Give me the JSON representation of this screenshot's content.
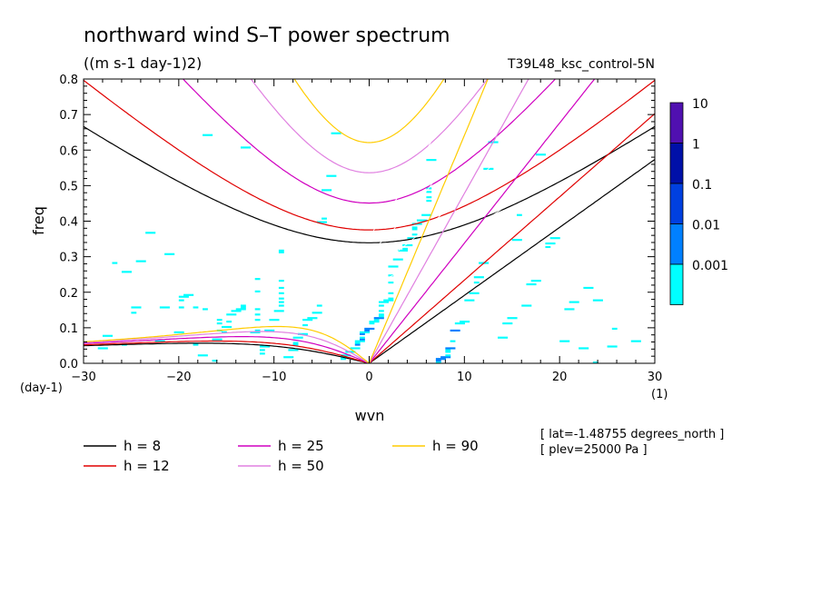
{
  "chart_data": {
    "type": "heatmap",
    "title": "northward wind S–T power spectrum",
    "subtitle": "((m s-1 day-1)2)",
    "case_label": "T39L48_ksc_control-5N",
    "xlabel": "wvn",
    "ylabel": "freq",
    "x_unit": "(1)",
    "y_unit": "(day-1)",
    "xlim": [
      -30,
      30
    ],
    "ylim": [
      0,
      0.8
    ],
    "x_ticks": [
      "−30",
      "−20",
      "−10",
      "0",
      "10",
      "20",
      "30"
    ],
    "x_tick_values": [
      -30,
      -20,
      -10,
      0,
      10,
      20,
      30
    ],
    "y_ticks": [
      "0.0",
      "0.1",
      "0.2",
      "0.3",
      "0.4",
      "0.5",
      "0.6",
      "0.7",
      "0.8"
    ],
    "y_tick_values": [
      0,
      0.1,
      0.2,
      0.3,
      0.4,
      0.5,
      0.6,
      0.7,
      0.8
    ],
    "colorbar": {
      "labels": [
        "10",
        "1",
        "0.1",
        "0.01",
        "0.001"
      ],
      "levels": [
        0.001,
        0.01,
        0.1,
        1,
        10
      ],
      "colors": [
        "#00ffff",
        "#0080ff",
        "#0040e0",
        "#0010a8",
        "#5010b0"
      ]
    },
    "curve_colors": {
      "h8": "#000000",
      "h12": "#e00000",
      "h25": "#d000c0",
      "h50": "#e080e0",
      "h90": "#ffcc00"
    },
    "legend": [
      {
        "label": "h =  8",
        "color": "#000000"
      },
      {
        "label": "h = 12",
        "color": "#e00000"
      },
      {
        "label": "h = 25",
        "color": "#d000c0"
      },
      {
        "label": "h = 50",
        "color": "#e080e0"
      },
      {
        "label": "h = 90",
        "color": "#ffcc00"
      }
    ],
    "annotations": [
      "[ lat=-1.48755 degrees_north ]",
      "[ plev=25000 Pa ]"
    ],
    "dispersion_curves": [
      {
        "h": 8,
        "color": "#000000",
        "wig_min": [
          -4,
          0.335
        ],
        "wig_at_minus30": 0.635,
        "wig_at_30": 0.565,
        "rossby_max": [
          -7,
          0.06
        ]
      },
      {
        "h": 12,
        "color": "#e00000",
        "wig_min": [
          -3,
          0.37
        ],
        "wig_at_minus30": 0.77,
        "wig_at_30": 0.69
      },
      {
        "h": 25,
        "color": "#d000c0",
        "wig_min": [
          -2.5,
          0.44
        ]
      },
      {
        "h": 50,
        "color": "#e080e0",
        "wig_min": [
          -2,
          0.53
        ]
      },
      {
        "h": 90,
        "color": "#ffcc00",
        "wig_min": [
          -1.5,
          0.61
        ]
      }
    ]
  }
}
